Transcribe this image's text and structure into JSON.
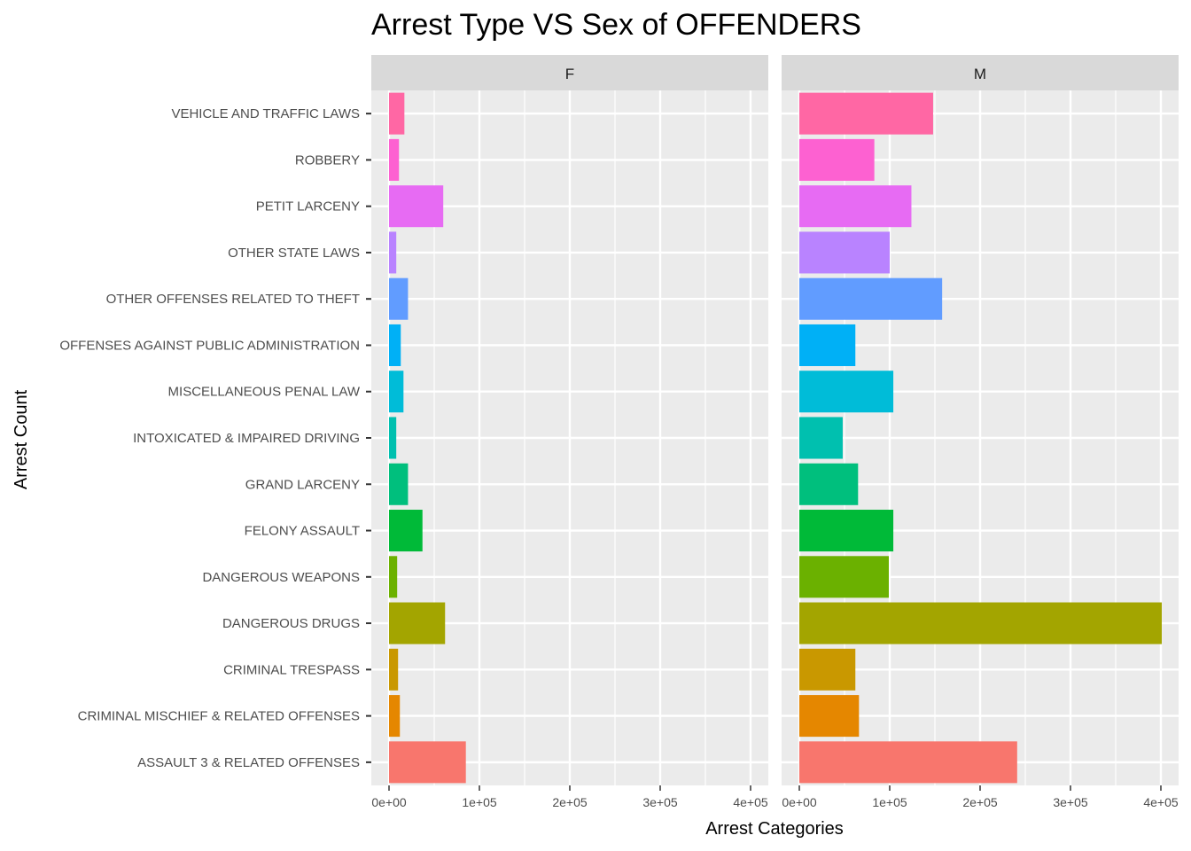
{
  "chart_data": {
    "type": "bar",
    "orientation": "horizontal",
    "title": "Arrest Type VS Sex of OFFENDERS",
    "xlabel": "Arrest Categories",
    "ylabel": "Arrest Count",
    "xlim": [
      0,
      400000
    ],
    "x_ticks": [
      0,
      100000,
      200000,
      300000,
      400000
    ],
    "x_tick_labels": [
      "0e+00",
      "1e+05",
      "2e+05",
      "3e+05",
      "4e+05"
    ],
    "grid": true,
    "legend": "none",
    "categories": [
      "ASSAULT 3 & RELATED OFFENSES",
      "CRIMINAL MISCHIEF & RELATED OFFENSES",
      "CRIMINAL TRESPASS",
      "DANGEROUS DRUGS",
      "DANGEROUS WEAPONS",
      "FELONY ASSAULT",
      "GRAND LARCENY",
      "INTOXICATED & IMPAIRED DRIVING",
      "MISCELLANEOUS PENAL LAW",
      "OFFENSES AGAINST PUBLIC ADMINISTRATION",
      "OTHER OFFENSES RELATED TO THEFT",
      "OTHER STATE LAWS",
      "PETIT LARCENY",
      "ROBBERY",
      "VEHICLE AND TRAFFIC LAWS"
    ],
    "colors": [
      "#F8766D",
      "#E58700",
      "#C99800",
      "#A3A500",
      "#6BB100",
      "#00BA38",
      "#00BF7D",
      "#00C0AF",
      "#00BCD8",
      "#00B0F6",
      "#619CFF",
      "#B983FF",
      "#E76BF3",
      "#FD61D1",
      "#FF67A4"
    ],
    "panels": [
      {
        "label": "F",
        "values": [
          85000,
          12000,
          10000,
          62000,
          9000,
          37000,
          21000,
          8000,
          16000,
          13000,
          21000,
          8000,
          60000,
          11000,
          17000
        ]
      },
      {
        "label": "M",
        "values": [
          241000,
          66000,
          62000,
          401000,
          99000,
          104000,
          65000,
          48000,
          104000,
          62000,
          158000,
          100000,
          124000,
          83000,
          148000
        ]
      }
    ]
  }
}
